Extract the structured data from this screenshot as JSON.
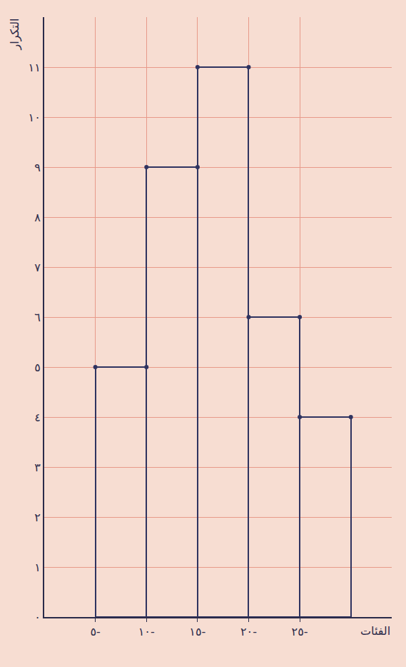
{
  "chart_data": {
    "type": "histogram",
    "xlabel": "الفئات",
    "ylabel": "التكرار",
    "bins": [
      5,
      10,
      15,
      20,
      25,
      30
    ],
    "values": [
      5,
      9,
      11,
      6,
      4
    ],
    "color": "#2f3360",
    "marker": "circle",
    "grid": true,
    "xlim": [
      0,
      34
    ],
    "xticks": [
      {
        "value": 5,
        "label": "٥-"
      },
      {
        "value": 10,
        "label": "١٠-"
      },
      {
        "value": 15,
        "label": "١٥-"
      },
      {
        "value": 20,
        "label": "٢٠-"
      },
      {
        "value": 25,
        "label": "٢٥-"
      }
    ],
    "ylim": [
      0,
      12
    ],
    "yticks": [
      {
        "value": 0,
        "label": "٠"
      },
      {
        "value": 1,
        "label": "١"
      },
      {
        "value": 2,
        "label": "٢"
      },
      {
        "value": 3,
        "label": "٣"
      },
      {
        "value": 4,
        "label": "٤"
      },
      {
        "value": 5,
        "label": "٥"
      },
      {
        "value": 6,
        "label": "٦"
      },
      {
        "value": 7,
        "label": "٧"
      },
      {
        "value": 8,
        "label": "٨"
      },
      {
        "value": 9,
        "label": "٩"
      },
      {
        "value": 10,
        "label": "١٠"
      },
      {
        "value": 11,
        "label": "١١"
      }
    ]
  }
}
